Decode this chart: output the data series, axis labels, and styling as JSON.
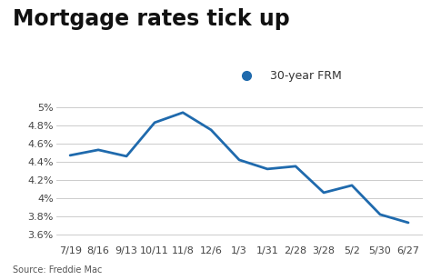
{
  "title": "Mortgage rates tick up",
  "source": "Source: Freddie Mac",
  "legend_label": "30-year FRM",
  "legend_color": "#1f6aad",
  "line_color": "#1f6aad",
  "background_color": "#ffffff",
  "x_labels": [
    "7/19",
    "8/16",
    "9/13",
    "10/11",
    "11/8",
    "12/6",
    "1/3",
    "1/31",
    "2/28",
    "3/28",
    "5/2",
    "5/30",
    "6/27"
  ],
  "y_values": [
    4.47,
    4.53,
    4.46,
    4.83,
    4.94,
    4.75,
    4.42,
    4.32,
    4.35,
    4.06,
    4.14,
    3.82,
    3.73
  ],
  "ylim": [
    3.5,
    5.1
  ],
  "yticks": [
    3.6,
    3.8,
    4.0,
    4.2,
    4.4,
    4.6,
    4.8,
    5.0
  ],
  "grid_color": "#cccccc",
  "title_fontsize": 17,
  "axis_fontsize": 8,
  "source_fontsize": 7,
  "legend_fontsize": 9
}
